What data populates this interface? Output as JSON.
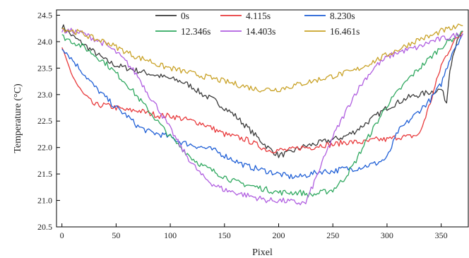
{
  "chart_data": {
    "type": "line",
    "title": "",
    "xlabel": "Pixel",
    "ylabel": "Temperature (°C)",
    "xlim": [
      -5,
      375
    ],
    "ylim": [
      20.5,
      24.6
    ],
    "xticks": [
      0,
      50,
      100,
      150,
      200,
      250,
      300,
      350
    ],
    "yticks": [
      20.5,
      21.0,
      21.5,
      22.0,
      22.5,
      23.0,
      23.5,
      24.0,
      24.5
    ],
    "xtick_labels": [
      "0",
      "50",
      "100",
      "150",
      "200",
      "250",
      "300",
      "350"
    ],
    "ytick_labels": [
      "20.5",
      "21.0",
      "21.5",
      "22.0",
      "22.5",
      "23.0",
      "23.5",
      "24.0",
      "24.5"
    ],
    "grid": false,
    "legend_position": "top-center",
    "series": [
      {
        "name": "0s",
        "color": "#3a3a3a",
        "x": [
          0,
          10,
          20,
          30,
          40,
          50,
          60,
          70,
          80,
          90,
          100,
          110,
          120,
          130,
          140,
          150,
          160,
          170,
          180,
          190,
          200,
          210,
          220,
          230,
          240,
          250,
          260,
          270,
          280,
          290,
          300,
          310,
          320,
          330,
          340,
          350,
          355,
          358,
          362,
          366,
          370
        ],
        "y": [
          24.3,
          24.1,
          23.95,
          23.8,
          23.65,
          23.55,
          23.5,
          23.45,
          23.4,
          23.35,
          23.3,
          23.25,
          23.15,
          23.0,
          22.9,
          22.75,
          22.6,
          22.4,
          22.2,
          22.0,
          21.85,
          21.9,
          22.0,
          22.05,
          22.1,
          22.15,
          22.2,
          22.3,
          22.45,
          22.6,
          22.75,
          22.85,
          22.95,
          23.0,
          23.05,
          23.1,
          22.85,
          23.5,
          23.85,
          24.05,
          24.15
        ]
      },
      {
        "name": "4.115s",
        "color": "#e8393b",
        "x": [
          0,
          5,
          10,
          15,
          20,
          25,
          30,
          40,
          50,
          60,
          70,
          80,
          90,
          100,
          110,
          120,
          130,
          140,
          150,
          160,
          170,
          180,
          190,
          200,
          210,
          220,
          230,
          240,
          250,
          260,
          270,
          280,
          290,
          300,
          310,
          320,
          330,
          340,
          350,
          360,
          370
        ],
        "y": [
          23.85,
          23.6,
          23.35,
          23.15,
          23.0,
          22.9,
          22.8,
          22.8,
          22.75,
          22.7,
          22.7,
          22.65,
          22.6,
          22.6,
          22.55,
          22.5,
          22.45,
          22.35,
          22.25,
          22.2,
          22.15,
          22.05,
          21.95,
          21.95,
          21.95,
          22.0,
          22.0,
          22.05,
          22.05,
          22.1,
          22.1,
          22.1,
          22.15,
          22.15,
          22.2,
          22.2,
          22.25,
          22.85,
          23.55,
          23.95,
          24.2
        ]
      },
      {
        "name": "8.230s",
        "color": "#1f5fd6",
        "x": [
          0,
          10,
          20,
          30,
          40,
          50,
          60,
          70,
          80,
          90,
          100,
          110,
          120,
          130,
          140,
          150,
          160,
          170,
          180,
          190,
          200,
          210,
          220,
          230,
          240,
          250,
          260,
          270,
          280,
          290,
          300,
          310,
          320,
          330,
          340,
          350,
          360,
          370
        ],
        "y": [
          23.9,
          23.65,
          23.4,
          23.15,
          22.95,
          22.75,
          22.6,
          22.4,
          22.3,
          22.25,
          22.2,
          22.1,
          22.05,
          22.0,
          21.95,
          21.85,
          21.75,
          21.65,
          21.6,
          21.55,
          21.5,
          21.45,
          21.45,
          21.5,
          21.55,
          21.55,
          21.6,
          21.6,
          21.65,
          21.7,
          21.8,
          22.3,
          22.5,
          22.7,
          22.9,
          23.2,
          23.8,
          24.15
        ]
      },
      {
        "name": "12.346s",
        "color": "#2fa85f",
        "x": [
          0,
          10,
          20,
          30,
          40,
          50,
          60,
          70,
          80,
          90,
          100,
          110,
          120,
          130,
          140,
          150,
          160,
          170,
          180,
          190,
          200,
          210,
          220,
          230,
          240,
          250,
          260,
          270,
          280,
          290,
          300,
          310,
          320,
          330,
          340,
          350,
          360,
          370
        ],
        "y": [
          24.1,
          24.0,
          23.9,
          23.75,
          23.6,
          23.4,
          23.2,
          22.95,
          22.7,
          22.45,
          22.2,
          22.0,
          21.8,
          21.65,
          21.55,
          21.45,
          21.35,
          21.3,
          21.25,
          21.2,
          21.15,
          21.15,
          21.15,
          21.1,
          21.15,
          21.2,
          21.4,
          21.7,
          22.1,
          22.45,
          22.8,
          23.05,
          23.3,
          23.5,
          23.7,
          23.9,
          24.05,
          24.2
        ]
      },
      {
        "name": "14.403s",
        "color": "#b05ee0",
        "x": [
          0,
          10,
          20,
          30,
          40,
          50,
          60,
          70,
          80,
          90,
          100,
          110,
          120,
          130,
          140,
          150,
          160,
          170,
          180,
          190,
          200,
          210,
          220,
          225,
          230,
          240,
          250,
          260,
          270,
          280,
          290,
          300,
          310,
          320,
          330,
          340,
          350,
          360,
          370
        ],
        "y": [
          24.2,
          24.2,
          24.15,
          24.05,
          23.95,
          23.8,
          23.6,
          23.35,
          23.0,
          22.7,
          22.35,
          22.0,
          21.7,
          21.45,
          21.3,
          21.2,
          21.15,
          21.1,
          21.05,
          21.0,
          21.0,
          20.98,
          20.95,
          20.95,
          21.2,
          21.7,
          22.2,
          22.6,
          23.0,
          23.3,
          23.55,
          23.7,
          23.8,
          23.85,
          23.9,
          24.0,
          24.05,
          24.1,
          24.15
        ]
      },
      {
        "name": "16.461s",
        "color": "#c9a227",
        "x": [
          0,
          10,
          20,
          30,
          40,
          50,
          60,
          70,
          80,
          90,
          100,
          110,
          120,
          130,
          140,
          150,
          160,
          170,
          180,
          190,
          200,
          210,
          220,
          230,
          240,
          250,
          260,
          270,
          280,
          290,
          300,
          310,
          320,
          330,
          340,
          350,
          360,
          370
        ],
        "y": [
          24.25,
          24.2,
          24.15,
          24.05,
          24.0,
          23.9,
          23.8,
          23.7,
          23.65,
          23.55,
          23.5,
          23.45,
          23.4,
          23.35,
          23.3,
          23.25,
          23.2,
          23.15,
          23.1,
          23.1,
          23.1,
          23.15,
          23.2,
          23.25,
          23.3,
          23.35,
          23.4,
          23.45,
          23.55,
          23.65,
          23.75,
          23.85,
          23.95,
          24.05,
          24.1,
          24.2,
          24.25,
          24.3
        ]
      }
    ]
  }
}
